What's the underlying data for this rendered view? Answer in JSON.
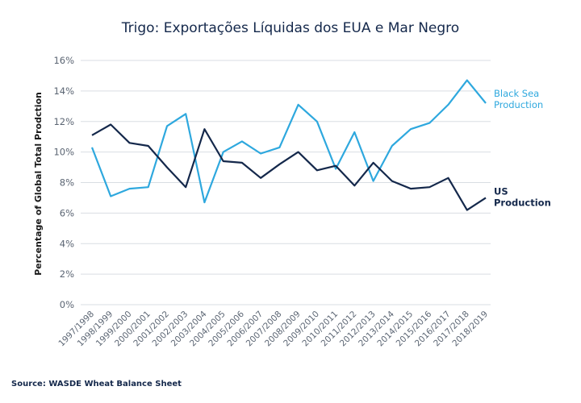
{
  "title": "Trigo: Exportações Líquidas dos EUA e Mar Negro",
  "source": "Source: WASDE Wheat Balance Sheet",
  "chart_data": {
    "type": "line",
    "title": "Trigo: Exportações Líquidas dos EUA e Mar Negro",
    "xlabel": "",
    "ylabel": "Percentage of Global Total Prodction",
    "ylim": [
      0,
      16
    ],
    "yticks": [
      "0%",
      "2%",
      "4%",
      "6%",
      "8%",
      "10%",
      "12%",
      "14%",
      "16%"
    ],
    "grid": true,
    "categories": [
      "1997/1998",
      "1998/1999",
      "1999/2000",
      "2000/2001",
      "2001/2002",
      "2002/2003",
      "2003/2004",
      "2004/2005",
      "2005/2006",
      "2006/2007",
      "2007/2008",
      "2008/2009",
      "2009/2010",
      "2010/2011",
      "2011/2012",
      "2012/2013",
      "2013/2014",
      "2014/2015",
      "2015/2016",
      "2016/2017",
      "2017/2018",
      "2018/2019"
    ],
    "series": [
      {
        "name": "Black Sea Production",
        "label_lines": [
          "Black Sea",
          "Production"
        ],
        "color": "#2ea8de",
        "values": [
          10.3,
          7.1,
          7.6,
          7.7,
          11.7,
          12.5,
          6.7,
          10.0,
          10.7,
          9.9,
          10.3,
          13.1,
          12.0,
          8.9,
          11.3,
          8.1,
          10.4,
          11.5,
          11.9,
          13.1,
          14.7,
          13.2
        ]
      },
      {
        "name": "US Production",
        "label_lines": [
          "US",
          "Production"
        ],
        "color": "#14284b",
        "values": [
          11.1,
          11.8,
          10.6,
          10.4,
          9.0,
          7.7,
          11.5,
          9.4,
          9.3,
          8.3,
          9.2,
          10.0,
          8.8,
          9.1,
          7.8,
          9.3,
          8.1,
          7.6,
          7.7,
          8.3,
          6.2,
          7.0
        ]
      }
    ]
  }
}
